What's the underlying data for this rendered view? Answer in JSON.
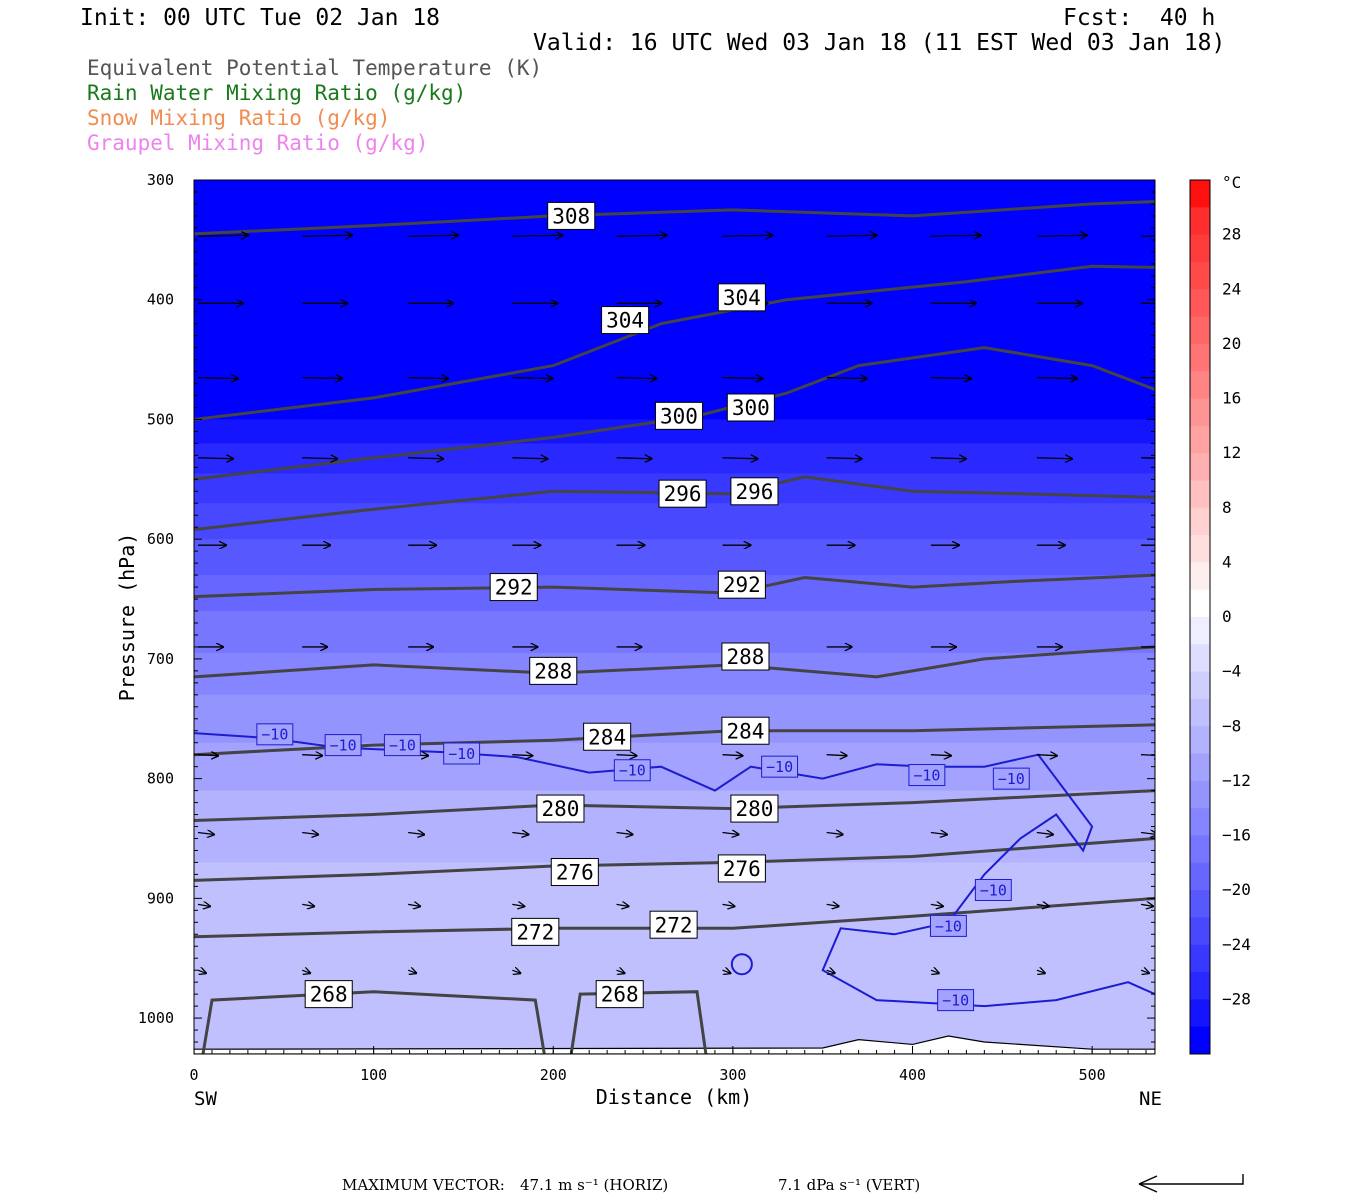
{
  "header": {
    "init": "Init: 00 UTC Tue 02 Jan 18",
    "fcst": "Fcst:  40 h",
    "valid": "Valid: 16 UTC Wed 03 Jan 18 (11 EST Wed 03 Jan 18)"
  },
  "fields": [
    {
      "label": "Equivalent Potential Temperature (K)",
      "color": "#555555"
    },
    {
      "label": "Rain Water Mixing Ratio (g/kg)",
      "color": "#1a7a1a"
    },
    {
      "label": "Snow Mixing Ratio (g/kg)",
      "color": "#f08c50"
    },
    {
      "label": "Graupel Mixing Ratio (g/kg)",
      "color": "#ee82ee"
    }
  ],
  "footer": {
    "label": "MAXIMUM VECTOR:",
    "horiz": "47.1 m s⁻¹ (HORIZ)",
    "vert": "7.1 dPa s⁻¹ (VERT)"
  },
  "chart_data": {
    "type": "heatmap",
    "description_series": "temperature (shaded, °C), equivalent potential temperature contours (K), wind vectors",
    "xlabel": "Distance (km)",
    "ylabel": "Pressure (hPa)",
    "x_left_label": "SW",
    "x_right_label": "NE",
    "xlim": [
      0,
      535
    ],
    "ylim": [
      1030,
      300
    ],
    "x_ticks": [
      0,
      100,
      200,
      300,
      400,
      500
    ],
    "y_ticks": [
      300,
      400,
      500,
      600,
      700,
      800,
      900,
      1000
    ],
    "colorbar": {
      "unit": "°C",
      "levels": [
        28,
        24,
        20,
        16,
        12,
        8,
        4,
        0,
        -4,
        -8,
        -12,
        -16,
        -20,
        -24,
        -28
      ],
      "bands": [
        {
          "lo": 30,
          "hi": 32,
          "color": "#ff1010"
        },
        {
          "lo": 28,
          "hi": 30,
          "color": "#ff2e2e"
        },
        {
          "lo": 26,
          "hi": 28,
          "color": "#ff3c3c"
        },
        {
          "lo": 24,
          "hi": 26,
          "color": "#ff4a4a"
        },
        {
          "lo": 22,
          "hi": 24,
          "color": "#ff5858"
        },
        {
          "lo": 20,
          "hi": 22,
          "color": "#ff6666"
        },
        {
          "lo": 18,
          "hi": 20,
          "color": "#ff7474"
        },
        {
          "lo": 16,
          "hi": 18,
          "color": "#ff8484"
        },
        {
          "lo": 14,
          "hi": 16,
          "color": "#ff9494"
        },
        {
          "lo": 12,
          "hi": 14,
          "color": "#ffa2a2"
        },
        {
          "lo": 10,
          "hi": 12,
          "color": "#ffb0b0"
        },
        {
          "lo": 8,
          "hi": 10,
          "color": "#ffc0c0"
        },
        {
          "lo": 6,
          "hi": 8,
          "color": "#ffd0d0"
        },
        {
          "lo": 4,
          "hi": 6,
          "color": "#ffdede"
        },
        {
          "lo": 2,
          "hi": 4,
          "color": "#ffeeee"
        },
        {
          "lo": 0,
          "hi": 2,
          "color": "#ffffff"
        },
        {
          "lo": -2,
          "hi": 0,
          "color": "#eeeeff"
        },
        {
          "lo": -4,
          "hi": -2,
          "color": "#dedeff"
        },
        {
          "lo": -6,
          "hi": -4,
          "color": "#cfcfff"
        },
        {
          "lo": -8,
          "hi": -6,
          "color": "#c0c0ff"
        },
        {
          "lo": -10,
          "hi": -8,
          "color": "#b2b2ff"
        },
        {
          "lo": -12,
          "hi": -10,
          "color": "#a3a3ff"
        },
        {
          "lo": -14,
          "hi": -12,
          "color": "#9494ff"
        },
        {
          "lo": -16,
          "hi": -14,
          "color": "#8585ff"
        },
        {
          "lo": -18,
          "hi": -16,
          "color": "#7676ff"
        },
        {
          "lo": -20,
          "hi": -18,
          "color": "#6767ff"
        },
        {
          "lo": -22,
          "hi": -20,
          "color": "#5858ff"
        },
        {
          "lo": -24,
          "hi": -22,
          "color": "#4848ff"
        },
        {
          "lo": -26,
          "hi": -24,
          "color": "#3838ff"
        },
        {
          "lo": -28,
          "hi": -26,
          "color": "#2828ff"
        },
        {
          "lo": -30,
          "hi": -28,
          "color": "#1414ff"
        },
        {
          "lo": -32,
          "hi": -30,
          "color": "#0000ff"
        }
      ]
    },
    "temperature_bands": [
      {
        "p_top": 300,
        "p_bot": 500,
        "temp": -31
      },
      {
        "p_top": 500,
        "p_bot": 520,
        "temp": -29
      },
      {
        "p_top": 520,
        "p_bot": 545,
        "temp": -27
      },
      {
        "p_top": 545,
        "p_bot": 570,
        "temp": -25
      },
      {
        "p_top": 570,
        "p_bot": 600,
        "temp": -23
      },
      {
        "p_top": 600,
        "p_bot": 630,
        "temp": -21
      },
      {
        "p_top": 630,
        "p_bot": 660,
        "temp": -19
      },
      {
        "p_top": 660,
        "p_bot": 695,
        "temp": -17
      },
      {
        "p_top": 695,
        "p_bot": 730,
        "temp": -15
      },
      {
        "p_top": 730,
        "p_bot": 770,
        "temp": -13
      },
      {
        "p_top": 770,
        "p_bot": 810,
        "temp": -11
      },
      {
        "p_top": 810,
        "p_bot": 870,
        "temp": -9
      },
      {
        "p_top": 870,
        "p_bot": 1030,
        "temp": -7
      }
    ],
    "theta_e_contours": [
      {
        "level": 308,
        "points": [
          [
            0,
            345
          ],
          [
            100,
            338
          ],
          [
            200,
            330
          ],
          [
            300,
            325
          ],
          [
            400,
            330
          ],
          [
            500,
            320
          ],
          [
            535,
            318
          ]
        ],
        "labels": [
          [
            210,
            330
          ]
        ]
      },
      {
        "level": 304,
        "points": [
          [
            0,
            500
          ],
          [
            100,
            482
          ],
          [
            200,
            455
          ],
          [
            260,
            420
          ],
          [
            330,
            400
          ],
          [
            430,
            385
          ],
          [
            500,
            372
          ],
          [
            535,
            373
          ]
        ],
        "labels": [
          [
            240,
            417
          ],
          [
            305,
            398
          ]
        ]
      },
      {
        "level": 300,
        "points": [
          [
            0,
            550
          ],
          [
            100,
            532
          ],
          [
            200,
            515
          ],
          [
            280,
            497
          ],
          [
            330,
            478
          ],
          [
            370,
            455
          ],
          [
            440,
            440
          ],
          [
            500,
            455
          ],
          [
            535,
            475
          ]
        ],
        "labels": [
          [
            270,
            497
          ],
          [
            310,
            490
          ]
        ]
      },
      {
        "level": 296,
        "points": [
          [
            0,
            592
          ],
          [
            100,
            575
          ],
          [
            200,
            560
          ],
          [
            300,
            562
          ],
          [
            340,
            548
          ],
          [
            400,
            560
          ],
          [
            460,
            562
          ],
          [
            535,
            565
          ]
        ],
        "labels": [
          [
            272,
            562
          ],
          [
            312,
            560
          ]
        ]
      },
      {
        "level": 292,
        "points": [
          [
            0,
            648
          ],
          [
            100,
            642
          ],
          [
            200,
            640
          ],
          [
            300,
            645
          ],
          [
            340,
            632
          ],
          [
            400,
            640
          ],
          [
            460,
            635
          ],
          [
            535,
            630
          ]
        ],
        "labels": [
          [
            178,
            640
          ],
          [
            305,
            638
          ]
        ]
      },
      {
        "level": 288,
        "points": [
          [
            0,
            715
          ],
          [
            100,
            705
          ],
          [
            200,
            712
          ],
          [
            300,
            705
          ],
          [
            380,
            715
          ],
          [
            440,
            700
          ],
          [
            535,
            690
          ]
        ],
        "labels": [
          [
            200,
            710
          ],
          [
            307,
            698
          ]
        ]
      },
      {
        "level": 284,
        "points": [
          [
            0,
            780
          ],
          [
            100,
            772
          ],
          [
            200,
            768
          ],
          [
            300,
            760
          ],
          [
            400,
            760
          ],
          [
            535,
            755
          ]
        ],
        "labels": [
          [
            230,
            765
          ],
          [
            307,
            760
          ]
        ]
      },
      {
        "level": 280,
        "points": [
          [
            0,
            835
          ],
          [
            100,
            830
          ],
          [
            200,
            822
          ],
          [
            300,
            825
          ],
          [
            400,
            820
          ],
          [
            535,
            810
          ]
        ],
        "labels": [
          [
            204,
            825
          ],
          [
            312,
            825
          ]
        ]
      },
      {
        "level": 276,
        "points": [
          [
            0,
            885
          ],
          [
            100,
            880
          ],
          [
            200,
            873
          ],
          [
            300,
            870
          ],
          [
            400,
            865
          ],
          [
            535,
            850
          ]
        ],
        "labels": [
          [
            212,
            878
          ],
          [
            305,
            875
          ]
        ]
      },
      {
        "level": 272,
        "points": [
          [
            0,
            932
          ],
          [
            100,
            928
          ],
          [
            200,
            925
          ],
          [
            300,
            925
          ],
          [
            400,
            915
          ],
          [
            535,
            900
          ]
        ],
        "labels": [
          [
            190,
            928
          ],
          [
            267,
            922
          ]
        ]
      },
      {
        "level": 268,
        "points": [
          [
            5,
            1030
          ],
          [
            10,
            985
          ],
          [
            100,
            978
          ],
          [
            190,
            985
          ],
          [
            195,
            1030
          ]
        ],
        "labels": [
          [
            75,
            980
          ]
        ]
      },
      {
        "level": 268,
        "points": [
          [
            210,
            1030
          ],
          [
            215,
            980
          ],
          [
            280,
            978
          ],
          [
            285,
            1030
          ]
        ],
        "labels": [
          [
            237,
            980
          ]
        ]
      }
    ],
    "isotherm_minus10": {
      "level": -10,
      "points": [
        [
          0,
          762
        ],
        [
          40,
          766
        ],
        [
          80,
          774
        ],
        [
          140,
          778
        ],
        [
          180,
          782
        ],
        [
          220,
          795
        ],
        [
          260,
          790
        ],
        [
          290,
          810
        ],
        [
          310,
          790
        ],
        [
          350,
          800
        ],
        [
          380,
          788
        ],
        [
          410,
          790
        ],
        [
          440,
          790
        ],
        [
          470,
          780
        ],
        [
          490,
          820
        ],
        [
          500,
          840
        ],
        [
          495,
          860
        ],
        [
          480,
          830
        ],
        [
          460,
          850
        ],
        [
          440,
          880
        ],
        [
          420,
          920
        ],
        [
          390,
          930
        ],
        [
          360,
          925
        ],
        [
          350,
          960
        ],
        [
          380,
          985
        ],
        [
          440,
          990
        ],
        [
          480,
          985
        ],
        [
          520,
          970
        ],
        [
          535,
          980
        ]
      ],
      "labels": [
        [
          45,
          763
        ],
        [
          83,
          772
        ],
        [
          116,
          772
        ],
        [
          149,
          779
        ],
        [
          244,
          793
        ],
        [
          326,
          790
        ],
        [
          408,
          797
        ],
        [
          455,
          800
        ],
        [
          445,
          893
        ],
        [
          420,
          923
        ],
        [
          424,
          985
        ]
      ]
    },
    "wind_vectors": {
      "rows": [
        {
          "p": 347,
          "dx": 50,
          "dy": -1
        },
        {
          "p": 403,
          "dx": 45,
          "dy": 0
        },
        {
          "p": 465,
          "dx": 40,
          "dy": 1
        },
        {
          "p": 532,
          "dx": 35,
          "dy": 1
        },
        {
          "p": 605,
          "dx": 28,
          "dy": 0
        },
        {
          "p": 690,
          "dx": 25,
          "dy": 0
        },
        {
          "p": 780,
          "dx": 20,
          "dy": 1
        },
        {
          "p": 845,
          "dx": 16,
          "dy": 2
        },
        {
          "p": 905,
          "dx": 12,
          "dy": 2
        },
        {
          "p": 960,
          "dx": 8,
          "dy": 3
        }
      ],
      "x_positions": [
        0,
        58,
        117,
        175,
        233,
        292,
        350,
        408,
        467,
        525
      ]
    },
    "max_vector": {
      "horiz_ms": 47.1,
      "vert_dpa_s": 7.1
    }
  }
}
